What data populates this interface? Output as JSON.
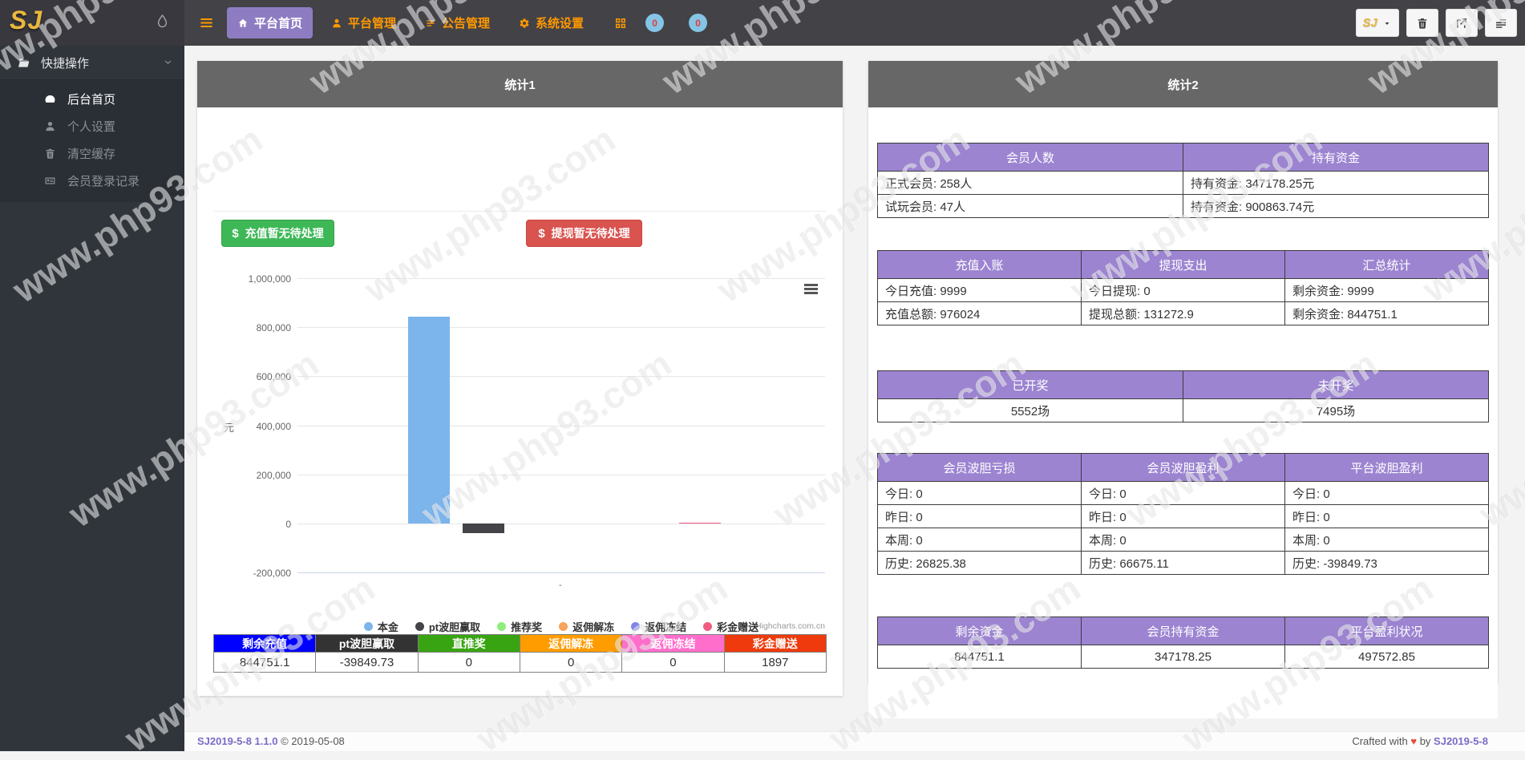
{
  "navbar": {
    "logo": "SJ",
    "menu": [
      {
        "label": "平台首页",
        "icon": "home-icon",
        "active": true
      },
      {
        "label": "平台管理",
        "icon": "user-icon",
        "active": false
      },
      {
        "label": "公告管理",
        "icon": "list-icon",
        "active": false
      },
      {
        "label": "系统设置",
        "icon": "gear-icon",
        "active": false
      }
    ],
    "badges": [
      "0",
      "0"
    ],
    "right_logo": "SJ"
  },
  "sidebar": {
    "section_label": "快捷操作",
    "items": [
      {
        "label": "后台首页",
        "icon": "dashboard-icon",
        "active": true
      },
      {
        "label": "个人设置",
        "icon": "user-icon",
        "active": false
      },
      {
        "label": "清空缓存",
        "icon": "trash-icon",
        "active": false
      },
      {
        "label": "会员登录记录",
        "icon": "idcard-icon",
        "active": false
      }
    ]
  },
  "panel1": {
    "title": "统计1",
    "dollar": "$",
    "deposit_label": "充值暂无待处理",
    "withdraw_label": "提现暂无待处理",
    "credit": "Highcharts.com.cn",
    "summary_table": {
      "headers": [
        {
          "label": "剩余充值",
          "color": "#0000ff"
        },
        {
          "label": "pt波胆赢取",
          "color": "#333333"
        },
        {
          "label": "直推奖",
          "color": "#38a412"
        },
        {
          "label": "返佣解冻",
          "color": "#ff9c00"
        },
        {
          "label": "返佣冻结",
          "color": "#ff6ecb"
        },
        {
          "label": "彩金赠送",
          "color": "#ee3a0c"
        }
      ],
      "rows": [
        [
          "844751.1",
          "-39849.73",
          "0",
          "0",
          "0",
          "1897"
        ]
      ]
    }
  },
  "chart_data": {
    "type": "bar",
    "title": "",
    "categories": [
      ""
    ],
    "series": [
      {
        "name": "本金",
        "value": 844751.1,
        "color": "#7cb5ec"
      },
      {
        "name": "pt波胆赢取",
        "value": -39849.73,
        "color": "#434348"
      },
      {
        "name": "推荐奖",
        "value": 0,
        "color": "#90ed7d"
      },
      {
        "name": "返佣解冻",
        "value": 0,
        "color": "#f7a35c"
      },
      {
        "name": "返佣冻结",
        "value": 0,
        "color": "#8085e9"
      },
      {
        "name": "彩金赠送",
        "value": 1897,
        "color": "#f15c80"
      }
    ],
    "xlabel": "",
    "ylabel": "元",
    "ylim": [
      -200000,
      1000000
    ],
    "ytick_step": 200000,
    "grid": true,
    "legend_position": "bottom"
  },
  "panel2": {
    "title": "统计2",
    "header_color": "#9c84d1",
    "tables": [
      {
        "headers": [
          "会员人数",
          "持有资金"
        ],
        "align": "left",
        "rows": [
          [
            "正式会员: 258人",
            "持有资金: 347178.25元"
          ],
          [
            "试玩会员: 47人",
            "持有资金: 900863.74元"
          ]
        ]
      },
      {
        "headers": [
          "充值入账",
          "提现支出",
          "汇总统计"
        ],
        "align": "left",
        "rows": [
          [
            "今日充值: 9999",
            "今日提现: 0",
            "剩余资金: 9999"
          ],
          [
            "充值总额: 976024",
            "提现总额: 131272.9",
            "剩余资金: 844751.1"
          ]
        ]
      },
      {
        "headers": [
          "已开奖",
          "未开奖"
        ],
        "align": "center",
        "rows": [
          [
            "5552场",
            "7495场"
          ]
        ]
      },
      {
        "headers": [
          "会员波胆亏损",
          "会员波胆盈利",
          "平台波胆盈利"
        ],
        "align": "left",
        "rows": [
          [
            "今日: 0",
            "今日: 0",
            "今日: 0"
          ],
          [
            "昨日: 0",
            "昨日: 0",
            "昨日: 0"
          ],
          [
            "本周: 0",
            "本周: 0",
            "本周: 0"
          ],
          [
            "历史: 26825.38",
            "历史: 66675.11",
            "历史: -39849.73"
          ]
        ]
      },
      {
        "headers": [
          "剩余资金",
          "会员持有资金",
          "平台盈利状况"
        ],
        "align": "center",
        "rows": [
          [
            "844751.1",
            "347178.25",
            "497572.85"
          ]
        ]
      }
    ]
  },
  "footer": {
    "left_brand": "SJ2019-5-8 1.1.0",
    "left_copy": "© 2019-05-08",
    "right_prefix": "Crafted with",
    "heart": "♥",
    "right_mid": "by",
    "right_brand": "SJ2019-5-8"
  },
  "watermark": "www.php93.com",
  "colors": {
    "navbar_bg": "#434247",
    "nav_accent_orange": "#ff9800",
    "active_purple": "#8e7cc3",
    "panel_header_gray": "#676767",
    "deposit_green": "#3eb857",
    "withdraw_red": "#d9534f",
    "stats_header_purple": "#9c84d1",
    "badge_blue": "#84c5e6",
    "badge_text_red": "#e03c3c"
  }
}
